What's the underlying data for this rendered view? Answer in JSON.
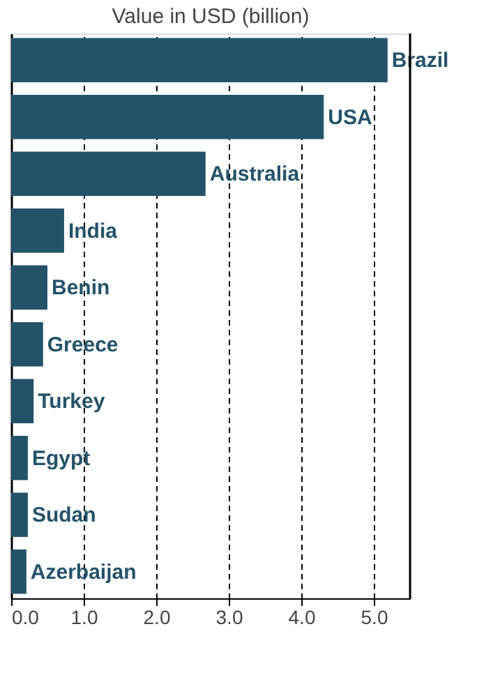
{
  "chart_data": {
    "type": "bar",
    "orientation": "horizontal",
    "xlabel": "Value in USD (billion)",
    "categories": [
      "Brazil",
      "USA",
      "Australia",
      "India",
      "Benin",
      "Greece",
      "Turkey",
      "Egypt",
      "Sudan",
      "Azerbaijan"
    ],
    "values": [
      5.19,
      4.31,
      2.68,
      0.73,
      0.5,
      0.44,
      0.31,
      0.23,
      0.23,
      0.21
    ],
    "color": "#245369",
    "xlim": [
      0,
      5.5
    ],
    "xticks": [
      {
        "value": 0,
        "label": "0.0"
      },
      {
        "value": 1,
        "label": "1.0"
      },
      {
        "value": 2,
        "label": "2.0"
      },
      {
        "value": 3,
        "label": "3.0"
      },
      {
        "value": 4,
        "label": "4.0"
      },
      {
        "value": 5,
        "label": "5.0"
      }
    ],
    "grid": "x",
    "tick_labels": "x"
  }
}
